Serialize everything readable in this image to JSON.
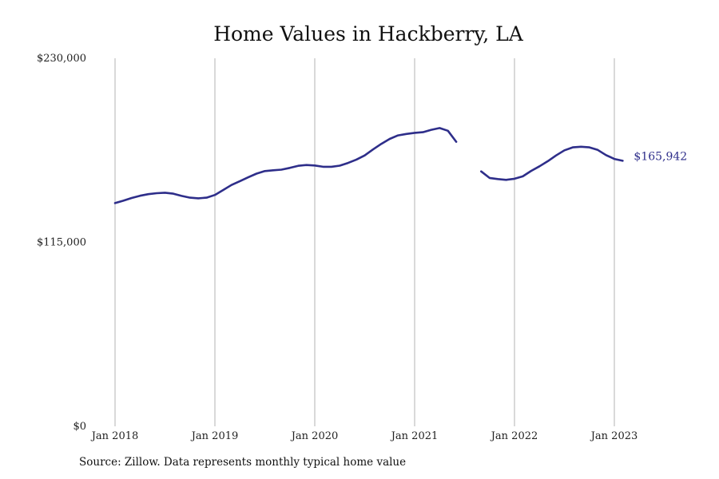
{
  "source_note": "Source: Zillow. Data represents monthly typical home value",
  "colors": {
    "series": "#2e2e8a",
    "grid": "#b3b3b3",
    "text": "#111111"
  },
  "chart_data": {
    "type": "line",
    "title": "Home Values in Hackberry, LA",
    "xlabel": "",
    "ylabel": "",
    "ylim": [
      0,
      230000
    ],
    "grid": {
      "vertical": true,
      "horizontal": false
    },
    "y_ticks": [
      {
        "value": 0,
        "label": "$0"
      },
      {
        "value": 115000,
        "label": "$115,000"
      },
      {
        "value": 230000,
        "label": "$230,000"
      }
    ],
    "x_ticks": [
      {
        "value": "2018-01",
        "label": "Jan 2018"
      },
      {
        "value": "2019-01",
        "label": "Jan 2019"
      },
      {
        "value": "2020-01",
        "label": "Jan 2020"
      },
      {
        "value": "2021-01",
        "label": "Jan 2021"
      },
      {
        "value": "2022-01",
        "label": "Jan 2022"
      },
      {
        "value": "2023-01",
        "label": "Jan 2023"
      }
    ],
    "series": [
      {
        "segments": [
          [
            [
              "2018-01",
              139500
            ],
            [
              "2018-02",
              141000
            ],
            [
              "2018-03",
              142700
            ],
            [
              "2018-04",
              144100
            ],
            [
              "2018-05",
              145100
            ],
            [
              "2018-06",
              145700
            ],
            [
              "2018-07",
              146000
            ],
            [
              "2018-08",
              145400
            ],
            [
              "2018-09",
              144000
            ],
            [
              "2018-10",
              142900
            ],
            [
              "2018-11",
              142500
            ],
            [
              "2018-12",
              142900
            ],
            [
              "2019-01",
              144600
            ],
            [
              "2019-02",
              147700
            ],
            [
              "2019-03",
              150800
            ],
            [
              "2019-04",
              153200
            ],
            [
              "2019-05",
              155600
            ],
            [
              "2019-06",
              157900
            ],
            [
              "2019-07",
              159500
            ],
            [
              "2019-08",
              160000
            ],
            [
              "2019-09",
              160400
            ],
            [
              "2019-10",
              161500
            ],
            [
              "2019-11",
              162800
            ],
            [
              "2019-12",
              163300
            ],
            [
              "2020-01",
              163000
            ],
            [
              "2020-02",
              162200
            ],
            [
              "2020-03",
              162200
            ],
            [
              "2020-04",
              162900
            ],
            [
              "2020-05",
              164600
            ],
            [
              "2020-06",
              166700
            ],
            [
              "2020-07",
              169300
            ],
            [
              "2020-08",
              173000
            ],
            [
              "2020-09",
              176500
            ],
            [
              "2020-10",
              179600
            ],
            [
              "2020-11",
              181800
            ],
            [
              "2020-12",
              182700
            ],
            [
              "2021-01",
              183400
            ],
            [
              "2021-02",
              183800
            ],
            [
              "2021-03",
              185300
            ],
            [
              "2021-04",
              186400
            ],
            [
              "2021-05",
              184700
            ],
            [
              "2021-06",
              177800
            ]
          ],
          [
            [
              "2021-09",
              159300
            ],
            [
              "2021-10",
              155200
            ],
            [
              "2021-11",
              154500
            ],
            [
              "2021-12",
              154000
            ],
            [
              "2022-01",
              154700
            ],
            [
              "2022-02",
              156200
            ],
            [
              "2022-03",
              159600
            ],
            [
              "2022-04",
              162500
            ],
            [
              "2022-05",
              165700
            ],
            [
              "2022-06",
              169300
            ],
            [
              "2022-07",
              172500
            ],
            [
              "2022-08",
              174300
            ],
            [
              "2022-09",
              174700
            ],
            [
              "2022-10",
              174300
            ],
            [
              "2022-11",
              172700
            ],
            [
              "2022-12",
              169500
            ],
            [
              "2023-01",
              167100
            ],
            [
              "2023-02",
              165942
            ]
          ]
        ],
        "end_label": "$165,942"
      }
    ]
  }
}
